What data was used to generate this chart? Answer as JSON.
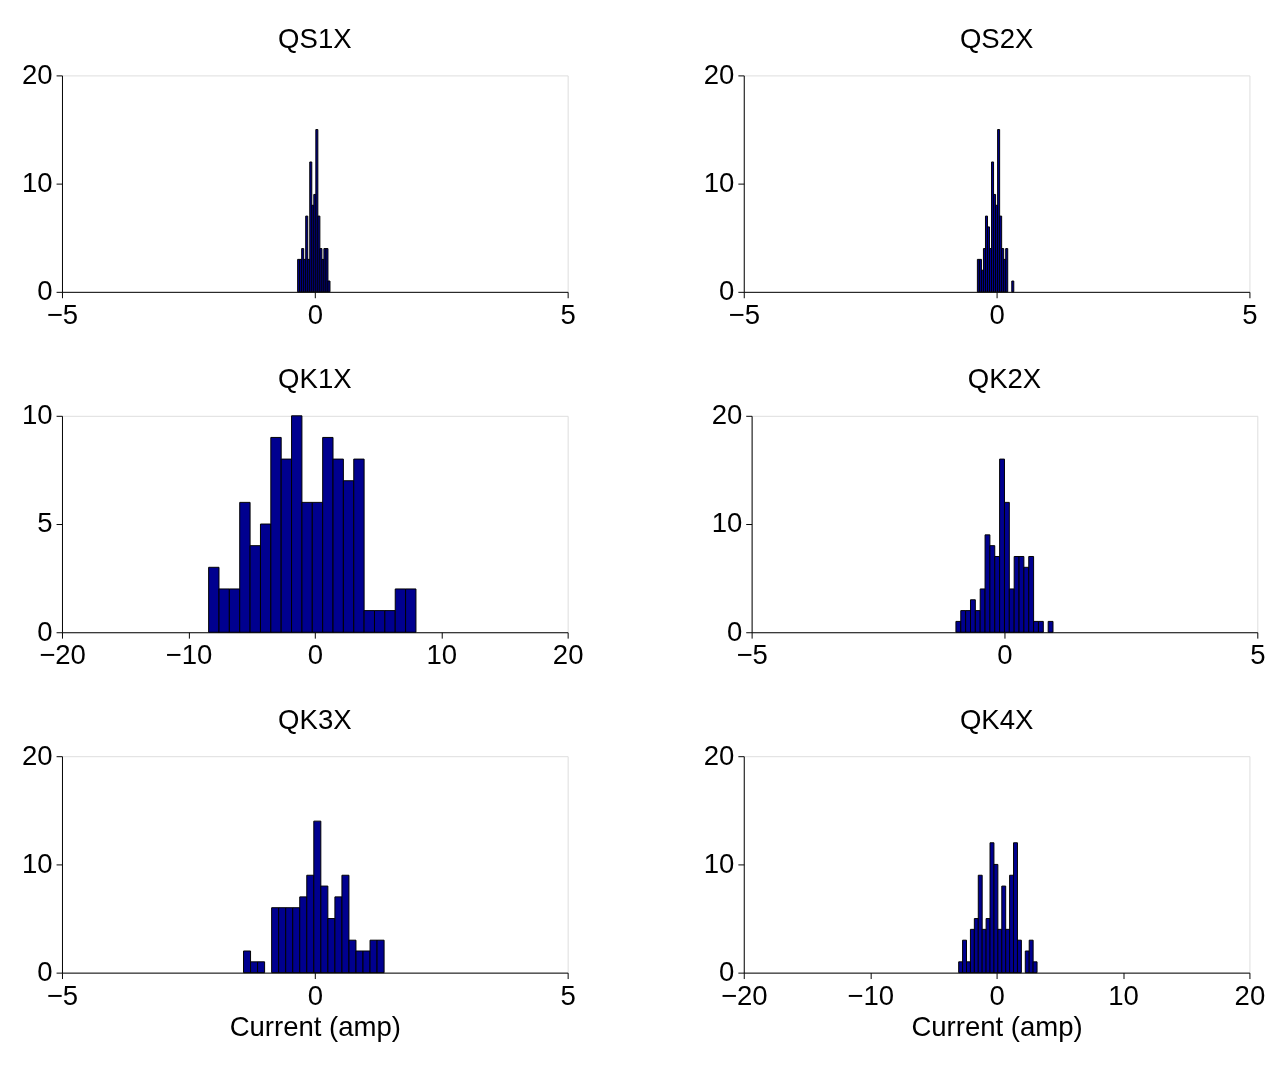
{
  "chart_data": [
    {
      "type": "histogram",
      "title": "QS1X",
      "color": "#00008f",
      "grid": false,
      "xlim": [
        -5,
        5
      ],
      "xticks": [
        -5,
        0,
        5
      ],
      "ylim": [
        0,
        20
      ],
      "yticks": [
        0,
        10,
        20
      ],
      "bins": [
        -0.34,
        -0.3,
        -0.26,
        -0.22,
        -0.18,
        -0.14,
        -0.1,
        -0.06,
        -0.02,
        0.02,
        0.06,
        0.1,
        0.14,
        0.18,
        0.22,
        0.26,
        0.3
      ],
      "values": [
        3,
        3,
        4,
        3,
        7,
        3,
        12,
        8,
        9,
        15,
        7,
        4,
        3,
        4,
        4,
        1
      ]
    },
    {
      "type": "histogram",
      "title": "QS2X",
      "color": "#00008f",
      "grid": false,
      "xlim": [
        -5,
        5
      ],
      "xticks": [
        -5,
        0,
        5
      ],
      "ylim": [
        0,
        20
      ],
      "yticks": [
        0,
        10,
        20
      ],
      "bins": [
        -0.38,
        -0.34,
        -0.3,
        -0.26,
        -0.22,
        -0.18,
        -0.14,
        -0.1,
        -0.06,
        -0.02,
        0.02,
        0.06,
        0.1,
        0.14,
        0.18,
        0.22,
        0.26,
        0.3,
        0.34
      ],
      "values": [
        3,
        3,
        2,
        4,
        7,
        6,
        4,
        12,
        9,
        8,
        15,
        7,
        4,
        3,
        4,
        0,
        0,
        1
      ]
    },
    {
      "type": "histogram",
      "title": "QK1X",
      "color": "#00008f",
      "grid": false,
      "xlim": [
        -20,
        20
      ],
      "xticks": [
        -20,
        -10,
        0,
        10,
        20
      ],
      "ylim": [
        0,
        10
      ],
      "yticks": [
        0,
        5,
        10
      ],
      "bins": [
        -8.4,
        -7.58,
        -6.76,
        -5.94,
        -5.12,
        -4.3,
        -3.48,
        -2.66,
        -1.84,
        -1.02,
        -0.2,
        0.62,
        1.44,
        2.26,
        3.08,
        3.9,
        4.72,
        5.54,
        6.36,
        7.18,
        8.0
      ],
      "values": [
        3,
        2,
        2,
        6,
        4,
        5,
        9,
        8,
        10,
        6,
        6,
        9,
        8,
        7,
        8,
        1,
        1,
        1,
        2,
        2
      ]
    },
    {
      "type": "histogram",
      "title": "QK2X",
      "color": "#00008f",
      "grid": false,
      "xlim": [
        -5,
        5
      ],
      "xticks": [
        -5,
        0,
        5
      ],
      "ylim": [
        0,
        20
      ],
      "yticks": [
        0,
        10,
        20
      ],
      "bins": [
        -0.96,
        -0.864,
        -0.768,
        -0.672,
        -0.576,
        -0.48,
        -0.384,
        -0.288,
        -0.192,
        -0.096,
        0.0,
        0.096,
        0.192,
        0.288,
        0.384,
        0.48,
        0.576,
        0.672,
        0.768,
        0.864,
        0.96
      ],
      "values": [
        1,
        2,
        2,
        3,
        2,
        4,
        9,
        8,
        7,
        16,
        12,
        4,
        7,
        7,
        6,
        7,
        1,
        1,
        0,
        1
      ]
    },
    {
      "type": "histogram",
      "title": "QK3X",
      "xlabel": "Current (amp)",
      "color": "#00008f",
      "grid": false,
      "xlim": [
        -5,
        5
      ],
      "xticks": [
        -5,
        0,
        5
      ],
      "ylim": [
        0,
        20
      ],
      "yticks": [
        0,
        10,
        20
      ],
      "bins": [
        -1.41,
        -1.271,
        -1.132,
        -0.993,
        -0.854,
        -0.715,
        -0.576,
        -0.437,
        -0.298,
        -0.159,
        -0.02,
        0.119,
        0.258,
        0.397,
        0.536,
        0.675,
        0.814,
        0.953,
        1.092,
        1.231,
        1.37
      ],
      "values": [
        2,
        1,
        1,
        0,
        6,
        6,
        6,
        6,
        7,
        9,
        14,
        8,
        5,
        7,
        9,
        3,
        2,
        2,
        3,
        3
      ]
    },
    {
      "type": "histogram",
      "title": "QK4X",
      "xlabel": "Current (amp)",
      "color": "#00008f",
      "grid": false,
      "xlim": [
        -20,
        20
      ],
      "xticks": [
        -20,
        -10,
        0,
        10,
        20
      ],
      "ylim": [
        0,
        20
      ],
      "yticks": [
        0,
        10,
        20
      ],
      "bins": [
        -3.0,
        -2.69,
        -2.38,
        -2.07,
        -1.76,
        -1.45,
        -1.14,
        -0.83,
        -0.52,
        -0.21,
        0.1,
        0.41,
        0.72,
        1.03,
        1.34,
        1.65,
        1.96,
        2.27,
        2.58,
        2.89,
        3.2
      ],
      "values": [
        1,
        3,
        1,
        4,
        5,
        9,
        4,
        5,
        12,
        10,
        4,
        8,
        4,
        9,
        12,
        3,
        0,
        2,
        3,
        1
      ]
    }
  ]
}
